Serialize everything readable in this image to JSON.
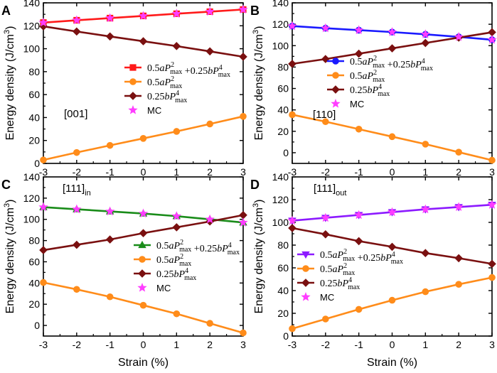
{
  "figure": {
    "shared_xlabel": "Strain (%)",
    "shared_ylabel": "Energy density (J/cm3)"
  },
  "chart_data": [
    {
      "panel": "A",
      "type": "line",
      "annotation": "[001]",
      "annotation_sub": "",
      "xlabel": "",
      "ylabel": "Energy density (J/cm3)",
      "x": [
        -3,
        -2,
        -1,
        0,
        1,
        2,
        3
      ],
      "xticks": [
        "-3",
        "-2",
        "-1",
        "0",
        "1",
        "2",
        "3"
      ],
      "xlim": [
        -3,
        3
      ],
      "ylim": [
        0,
        140
      ],
      "yticks": [
        0,
        20,
        40,
        60,
        80,
        100,
        120,
        140
      ],
      "legend_position": "middle-right",
      "series": [
        {
          "name": "0.5aP2max+0.25bP4max",
          "color": "#ff1a1a",
          "marker": "square",
          "values": [
            122.8,
            124.8,
            126.7,
            128.6,
            130.5,
            132.3,
            134.2
          ]
        },
        {
          "name": "0.5aP2max",
          "color": "#ff8c1a",
          "marker": "circle",
          "values": [
            3,
            9.5,
            15.7,
            21.8,
            27.9,
            34.4,
            41
          ]
        },
        {
          "name": "0.25bP4max",
          "color": "#7a1010",
          "marker": "diamond",
          "values": [
            119.5,
            115,
            110.7,
            106.5,
            102.3,
            97.7,
            93
          ]
        },
        {
          "name": "MC",
          "color": "#ff3dff",
          "marker": "star",
          "values": [
            122.8,
            124.8,
            126.7,
            128.6,
            130.5,
            132.3,
            134.2
          ]
        }
      ]
    },
    {
      "panel": "B",
      "type": "line",
      "annotation": "[110]",
      "annotation_sub": "",
      "xlabel": "",
      "ylabel": "",
      "x": [
        -3,
        -2,
        -1,
        0,
        1,
        2,
        3
      ],
      "xticks": [
        "-3",
        "-2",
        "-1",
        "0",
        "1",
        "2",
        "3"
      ],
      "xlim": [
        -3,
        3
      ],
      "ylim": [
        -10,
        140
      ],
      "yticks": [
        0,
        20,
        40,
        60,
        80,
        100,
        120,
        140
      ],
      "legend_position": "upper-right",
      "series": [
        {
          "name": "0.5aP2max+0.25bP4max",
          "color": "#1a1aff",
          "marker": "circle",
          "values": [
            118.3,
            116.3,
            114.5,
            112.7,
            110.6,
            108.2,
            105.5
          ]
        },
        {
          "name": "0.5aP2max",
          "color": "#ff8c1a",
          "marker": "circle",
          "values": [
            35.5,
            29,
            22,
            15,
            8,
            0.5,
            -7
          ]
        },
        {
          "name": "0.25bP4max",
          "color": "#7a1010",
          "marker": "diamond",
          "values": [
            83,
            87.5,
            92.5,
            97.5,
            102.5,
            107.5,
            112.5
          ]
        },
        {
          "name": "MC",
          "color": "#ff3dff",
          "marker": "star",
          "values": [
            118.3,
            116.3,
            114.5,
            112.7,
            110.6,
            108.2,
            105.5
          ]
        }
      ]
    },
    {
      "panel": "C",
      "type": "line",
      "annotation": "[111]",
      "annotation_sub": "in",
      "xlabel": "Strain (%)",
      "ylabel": "Energy density (J/cm3)",
      "x": [
        -3,
        -2,
        -1,
        0,
        1,
        2,
        3
      ],
      "xticks": [
        "-3",
        "-2",
        "-1",
        "0",
        "1",
        "2",
        "3"
      ],
      "xlim": [
        -3,
        3
      ],
      "ylim": [
        -10,
        140
      ],
      "yticks": [
        0,
        20,
        40,
        60,
        80,
        100,
        120,
        140
      ],
      "legend_position": "middle-right",
      "series": [
        {
          "name": "0.5aP2max+0.25bP4max",
          "color": "#1a8c1a",
          "marker": "triangle",
          "values": [
            111.5,
            109.5,
            107.5,
            105.5,
            103,
            100,
            97
          ]
        },
        {
          "name": "0.5aP2max",
          "color": "#ff8c1a",
          "marker": "circle",
          "values": [
            40.5,
            34,
            27,
            19,
            11,
            2,
            -7
          ]
        },
        {
          "name": "0.25bP4max",
          "color": "#7a1010",
          "marker": "diamond",
          "values": [
            71,
            76,
            81,
            87,
            92.5,
            98,
            104
          ]
        },
        {
          "name": "MC",
          "color": "#ff3dff",
          "marker": "star",
          "values": [
            111.5,
            109.5,
            107.5,
            105.5,
            103,
            100,
            97
          ]
        }
      ]
    },
    {
      "panel": "D",
      "type": "line",
      "annotation": "[111]",
      "annotation_sub": "out",
      "xlabel": "Strain (%)",
      "ylabel": "",
      "x": [
        -3,
        -2,
        -1,
        0,
        1,
        2,
        3
      ],
      "xticks": [
        "-3",
        "-2",
        "-1",
        "0",
        "1",
        "2",
        "3"
      ],
      "xlim": [
        -3,
        3
      ],
      "ylim": [
        0,
        140
      ],
      "yticks": [
        0,
        20,
        40,
        60,
        80,
        100,
        120,
        140
      ],
      "legend_position": "middle-left",
      "series": [
        {
          "name": "0.5aP2max+0.25bP4max",
          "color": "#8c1aff",
          "marker": "triangle-down",
          "values": [
            101.5,
            104,
            106.5,
            109,
            111.5,
            113.5,
            115.5
          ]
        },
        {
          "name": "0.5aP2max",
          "color": "#ff8c1a",
          "marker": "circle",
          "values": [
            6.5,
            15,
            23.5,
            31.5,
            39,
            45.5,
            51.5
          ]
        },
        {
          "name": "0.25bP4max",
          "color": "#7a1010",
          "marker": "diamond",
          "values": [
            95,
            89.5,
            83.5,
            78.5,
            73,
            68.5,
            63.5
          ]
        },
        {
          "name": "MC",
          "color": "#ff3dff",
          "marker": "star",
          "values": [
            101.5,
            104,
            106.5,
            109,
            111.5,
            113.5,
            115.5
          ]
        }
      ]
    }
  ]
}
